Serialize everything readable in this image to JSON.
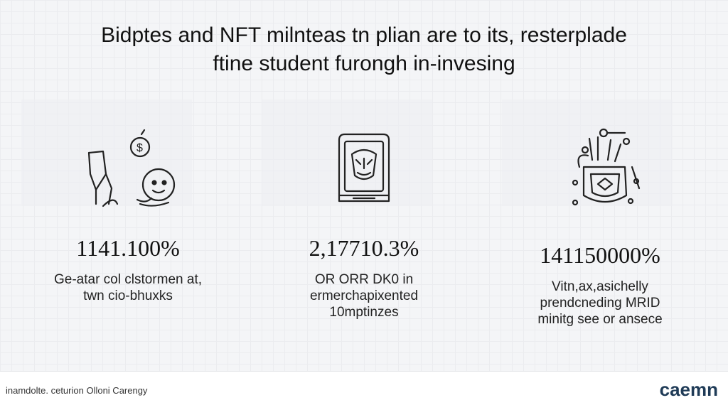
{
  "title": {
    "line1": "Bidptes and NFT milnteas tn plian are to its, resterplade",
    "line2": "ftine student furongh in-invesing"
  },
  "columns": [
    {
      "icon": "finance-person-icon",
      "stat": "1141.100%",
      "desc": [
        "Ge-atar col clstormen at,",
        "twn cio-bhuxks"
      ]
    },
    {
      "icon": "nft-frame-icon",
      "stat": "2,17710.3%",
      "desc": [
        "OR ORR DK0 in",
        "ermerchapixented",
        "10mptinzes"
      ]
    },
    {
      "icon": "crypto-network-icon",
      "stat": "141150000%",
      "desc": [
        "Vitn,ax,asichelly",
        "prendcneding MRID",
        "minitg see or ansece"
      ]
    }
  ],
  "footer": {
    "left_text": "inamdolte. ceturion Olloni Carengy",
    "logo_text": "caemn"
  },
  "colors": {
    "accent": "#1f3b57",
    "text": "#111111"
  }
}
